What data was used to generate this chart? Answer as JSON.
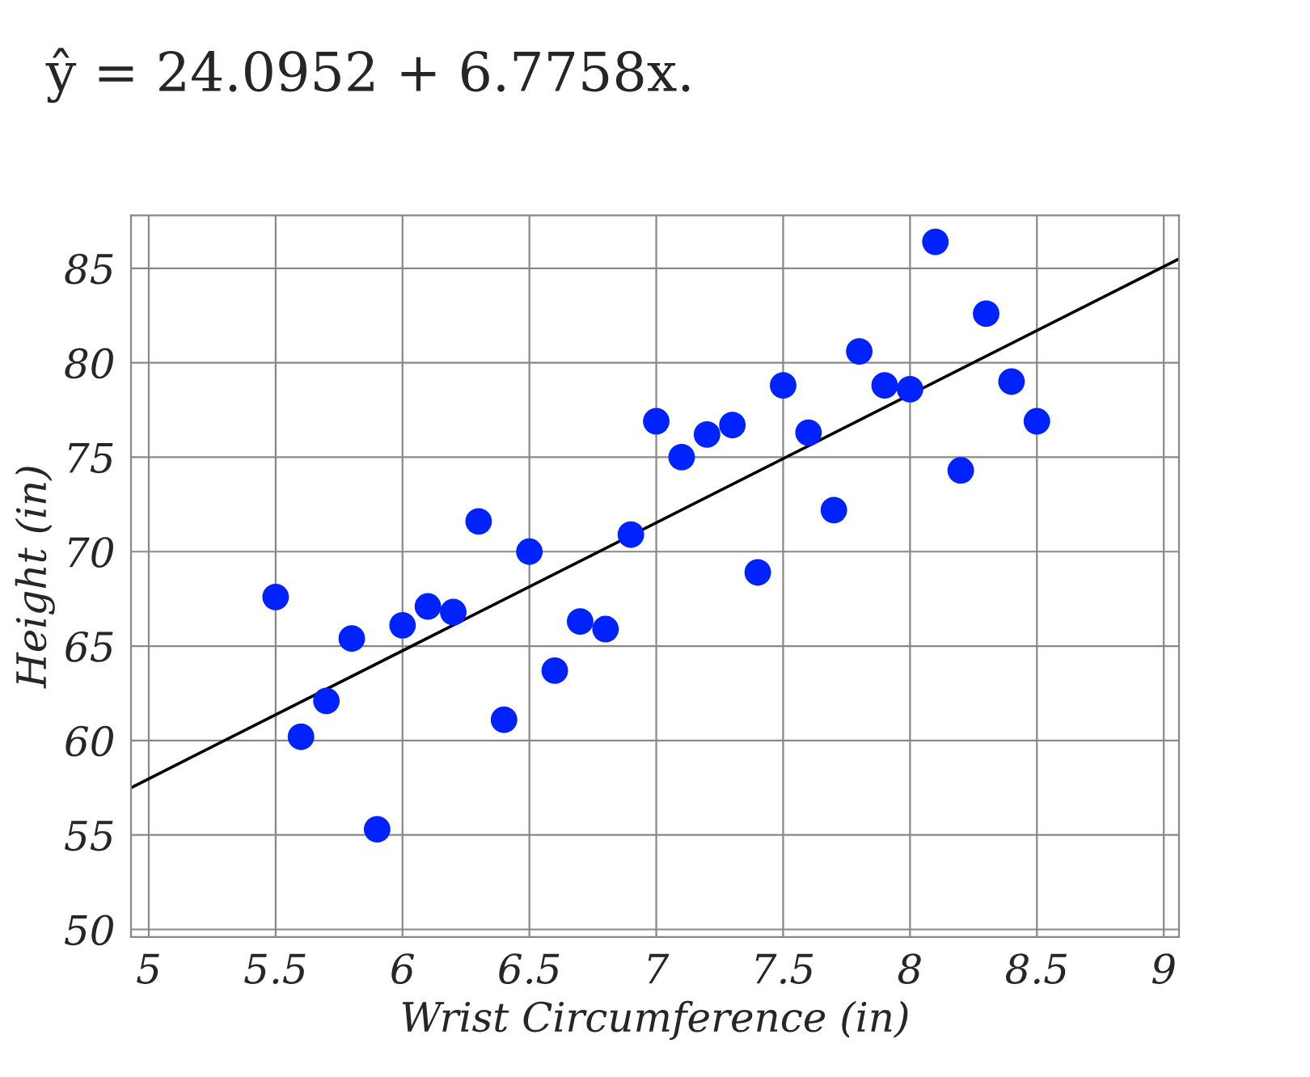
{
  "chart_data": {
    "type": "scatter",
    "title": "ŷ = 24.0952 + 6.7758x.",
    "xlabel": "Wrist Circumference (in)",
    "ylabel": "Height (in)",
    "xlim": [
      4.93,
      9.06
    ],
    "ylim": [
      49.6,
      87.8
    ],
    "xticks": [
      5,
      5.5,
      6,
      6.5,
      7,
      7.5,
      8,
      8.5,
      9
    ],
    "yticks": [
      50,
      55,
      60,
      65,
      70,
      75,
      80,
      85
    ],
    "grid": true,
    "series": [
      {
        "marker": "circle",
        "color": "#0022ff",
        "x": [
          5.5,
          5.6,
          5.7,
          5.8,
          5.9,
          6.0,
          6.1,
          6.2,
          6.3,
          6.4,
          6.5,
          6.6,
          6.7,
          6.8,
          6.9,
          7.0,
          7.1,
          7.2,
          7.3,
          7.4,
          7.5,
          7.6,
          7.7,
          7.8,
          7.9,
          8.0,
          8.1,
          8.2,
          8.3,
          8.4,
          8.5
        ],
        "values": [
          67.6,
          60.2,
          62.1,
          65.4,
          55.3,
          66.1,
          67.1,
          66.8,
          71.6,
          61.1,
          70.0,
          63.7,
          66.3,
          65.9,
          70.9,
          76.9,
          75.0,
          76.2,
          76.7,
          68.9,
          78.8,
          76.3,
          72.2,
          80.6,
          78.8,
          78.6,
          86.4,
          74.3,
          82.6,
          79.0,
          76.9
        ]
      },
      {
        "type": "line",
        "color": "#000000",
        "x": [
          4.93,
          9.06
        ],
        "values": [
          57.5,
          85.5
        ]
      }
    ]
  }
}
